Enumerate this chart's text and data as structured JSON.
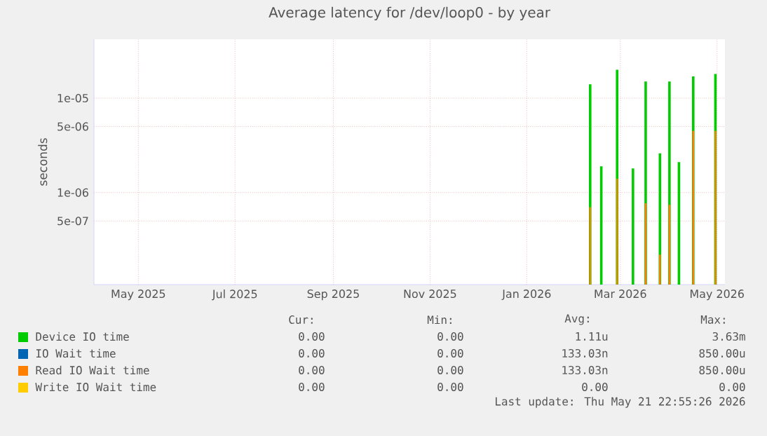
{
  "chart_data": {
    "type": "bar",
    "title": "Average latency for /dev/loop0 - by year",
    "ylabel": "seconds",
    "x": [
      "2026-02-25",
      "2026-03-04",
      "2026-03-14",
      "2026-03-24",
      "2026-04-01",
      "2026-04-10",
      "2026-04-16",
      "2026-04-22",
      "2026-05-01",
      "2026-05-15"
    ],
    "series": [
      {
        "name": "Device IO time",
        "color": "#00cc00",
        "values": [
          1.4e-05,
          1.9e-06,
          2e-05,
          1.8e-06,
          1.5e-05,
          2.6e-06,
          1.5e-05,
          2.1e-06,
          1.7e-05,
          1.8e-05
        ]
      },
      {
        "name": "IO Wait time",
        "color": "#0066b3",
        "values": [
          null,
          null,
          null,
          null,
          null,
          null,
          null,
          null,
          null,
          null
        ]
      },
      {
        "name": "Read IO Wait time",
        "color": "#ff8000",
        "values": [
          7e-07,
          null,
          1.4e-06,
          null,
          7.7e-07,
          2.2e-07,
          7.4e-07,
          null,
          4.5e-06,
          4.5e-06
        ]
      },
      {
        "name": "Write IO Wait time",
        "color": "#ffcc00",
        "values": [
          null,
          null,
          null,
          null,
          null,
          null,
          null,
          null,
          null,
          null
        ]
      }
    ],
    "xlim": [
      "2025-04-18",
      "2026-05-21"
    ],
    "xticks": [
      {
        "value": "2025-05-16",
        "label": "May 2025"
      },
      {
        "value": "2025-07-16",
        "label": "Jul 2025"
      },
      {
        "value": "2025-09-16",
        "label": "Sep 2025"
      },
      {
        "value": "2025-11-16",
        "label": "Nov 2025"
      },
      {
        "value": "2026-01-16",
        "label": "Jan 2026"
      },
      {
        "value": "2026-03-16",
        "label": "Mar 2026"
      },
      {
        "value": "2026-05-16",
        "label": "May 2026"
      }
    ],
    "ylim": [
      1.06e-07,
      4.2e-05
    ],
    "yticks": [
      {
        "value": 5e-07,
        "label": "5e-07"
      },
      {
        "value": 1e-06,
        "label": "1e-06"
      },
      {
        "value": 5e-06,
        "label": "5e-06"
      },
      {
        "value": 1e-05,
        "label": "1e-05"
      }
    ],
    "log": "y",
    "grid": true,
    "legend": "bottom",
    "annotations": [
      "Cur:",
      "Min:",
      "Avg:",
      "Max:",
      "0.00",
      "0.00",
      "1.11u",
      "3.63m",
      "0.00",
      "0.00",
      "133.03n",
      "850.00u",
      "0.00",
      "0.00",
      "133.03n",
      "850.00u",
      "0.00",
      "0.00",
      "0.00",
      "0.00",
      "Last update: Thu May 21 22:55:26 2026"
    ]
  }
}
